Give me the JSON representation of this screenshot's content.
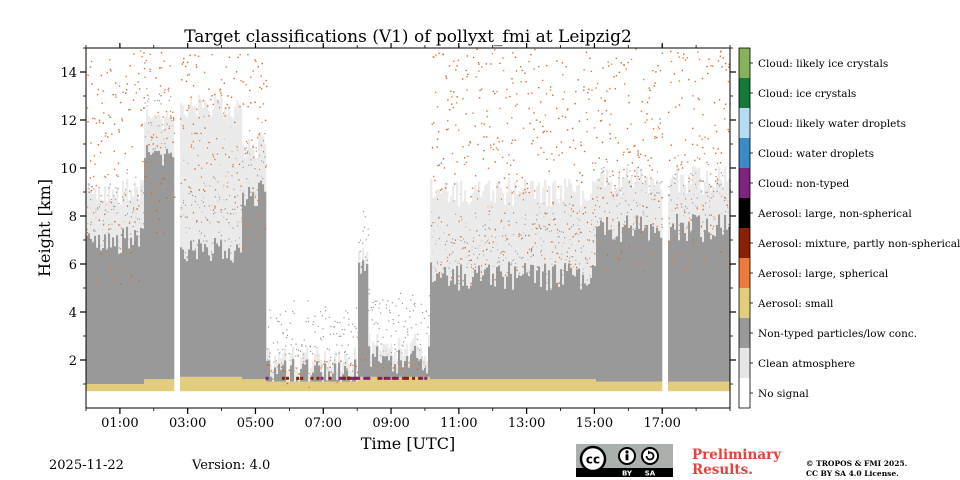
{
  "chart_data": {
    "type": "heatmap",
    "title": "Target classifications (V1) of pollyxt_fmi at Leipzig2",
    "xlabel": "Time [UTC]",
    "ylabel": "Height [km]",
    "xlim_hours": [
      0,
      19
    ],
    "ylim_km": [
      0,
      15
    ],
    "x_ticks": [
      {
        "hour": 1,
        "label": "01:00"
      },
      {
        "hour": 3,
        "label": "03:00"
      },
      {
        "hour": 5,
        "label": "05:00"
      },
      {
        "hour": 7,
        "label": "07:00"
      },
      {
        "hour": 9,
        "label": "09:00"
      },
      {
        "hour": 11,
        "label": "11:00"
      },
      {
        "hour": 13,
        "label": "13:00"
      },
      {
        "hour": 15,
        "label": "15:00"
      },
      {
        "hour": 17,
        "label": "17:00"
      }
    ],
    "y_ticks": [
      {
        "km": 2,
        "label": "2"
      },
      {
        "km": 4,
        "label": "4"
      },
      {
        "km": 6,
        "label": "6"
      },
      {
        "km": 8,
        "label": "8"
      },
      {
        "km": 10,
        "label": "10"
      },
      {
        "km": 12,
        "label": "12"
      },
      {
        "km": 14,
        "label": "14"
      }
    ],
    "classes": [
      {
        "code": 11,
        "label": "Cloud: likely ice crystals",
        "color": "#86b35a"
      },
      {
        "code": 10,
        "label": "Cloud: ice crystals",
        "color": "#137a38"
      },
      {
        "code": 9,
        "label": "Cloud: likely water droplets",
        "color": "#b5dcf2"
      },
      {
        "code": 8,
        "label": "Cloud: water droplets",
        "color": "#3a8ac8"
      },
      {
        "code": 7,
        "label": "Cloud: non-typed",
        "color": "#7f2282"
      },
      {
        "code": 6,
        "label": "Aerosol: large, non-spherical",
        "color": "#000000"
      },
      {
        "code": 5,
        "label": "Aerosol: mixture, partly non-spherical",
        "color": "#8b2003"
      },
      {
        "code": 4,
        "label": "Aerosol: large, spherical",
        "color": "#ec7a3a"
      },
      {
        "code": 3,
        "label": "Aerosol: small",
        "color": "#e1cd7c"
      },
      {
        "code": 2,
        "label": "Non-typed particles/low conc.",
        "color": "#999999"
      },
      {
        "code": 1,
        "label": "Clean atmosphere",
        "color": "#e6e6e6"
      },
      {
        "code": 0,
        "label": "No signal",
        "color": "#ffffff"
      }
    ],
    "data_gaps_hours": [
      [
        2.55,
        2.75
      ],
      [
        16.95,
        17.15
      ]
    ],
    "regions": [
      {
        "from_h": 0.0,
        "to_h": 1.7,
        "boundary_layer_top_km": 1.0,
        "aerosol_small_top_km": 1.0,
        "non_typed_top_km": 7.0,
        "clean_top_km": 9.0,
        "large_spherical_max_km": 15
      },
      {
        "from_h": 1.7,
        "to_h": 2.55,
        "boundary_layer_top_km": 1.2,
        "aerosol_small_top_km": 1.2,
        "non_typed_top_km": 10.5,
        "clean_top_km": 12.0,
        "large_spherical_max_km": 15
      },
      {
        "from_h": 2.75,
        "to_h": 4.6,
        "boundary_layer_top_km": 1.3,
        "aerosol_small_top_km": 1.3,
        "non_typed_top_km": 6.5,
        "clean_top_km": 12.5,
        "large_spherical_max_km": 15
      },
      {
        "from_h": 4.6,
        "to_h": 5.3,
        "boundary_layer_top_km": 1.2,
        "aerosol_small_top_km": 1.2,
        "non_typed_top_km": 9.0,
        "clean_top_km": 11.0,
        "large_spherical_max_km": 15
      },
      {
        "from_h": 5.3,
        "to_h": 8.0,
        "boundary_layer_top_km": 1.1,
        "aerosol_small_top_km": 1.1,
        "non_typed_top_km": 1.5,
        "clean_top_km": 2.0,
        "large_spherical_max_km": 2
      },
      {
        "from_h": 8.0,
        "to_h": 8.3,
        "boundary_layer_top_km": 1.3,
        "aerosol_small_top_km": 1.3,
        "non_typed_top_km": 6.0,
        "clean_top_km": 6.5,
        "large_spherical_max_km": 2
      },
      {
        "from_h": 8.3,
        "to_h": 10.1,
        "boundary_layer_top_km": 1.3,
        "aerosol_small_top_km": 1.3,
        "non_typed_top_km": 2.0,
        "clean_top_km": 2.5,
        "large_spherical_max_km": 2
      },
      {
        "from_h": 10.1,
        "to_h": 15.0,
        "boundary_layer_top_km": 1.2,
        "aerosol_small_top_km": 1.2,
        "non_typed_top_km": 5.5,
        "clean_top_km": 9.0,
        "large_spherical_max_km": 15
      },
      {
        "from_h": 15.0,
        "to_h": 19.0,
        "boundary_layer_top_km": 1.1,
        "aerosol_small_top_km": 1.1,
        "non_typed_top_km": 7.5,
        "clean_top_km": 9.5,
        "large_spherical_max_km": 15
      }
    ]
  },
  "footer": {
    "date": "2025-11-22",
    "version": "Version: 4.0",
    "preliminary": [
      "Preliminary",
      "Results."
    ],
    "copyright": [
      "© TROPOS & FMI 2025.",
      "CC BY SA 4.0 License."
    ],
    "cc_badge": {
      "main": "cc",
      "by": "BY",
      "sa": "SA"
    }
  }
}
